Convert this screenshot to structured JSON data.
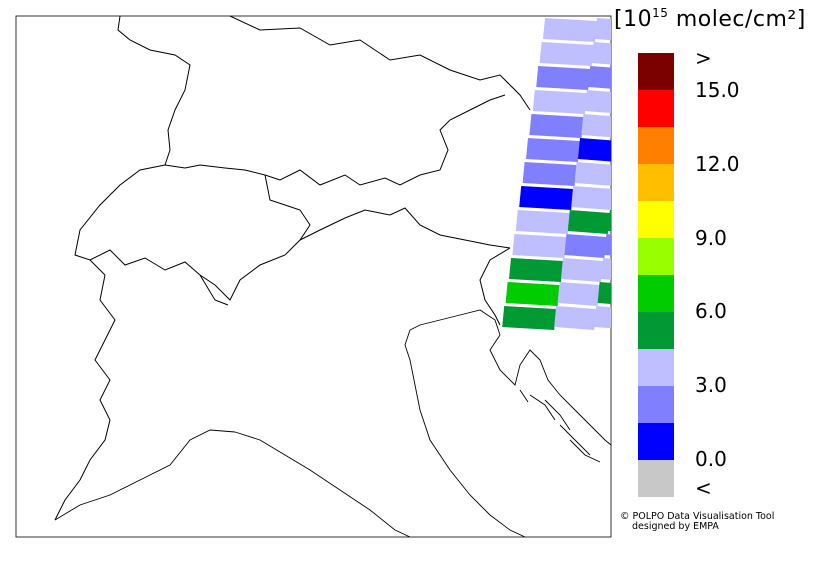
{
  "legend": {
    "unit_prefix": "[10",
    "unit_exp": "15",
    "unit_suffix": " molec/cm²]",
    "labels": [
      ">",
      "15.0",
      "12.0",
      "9.0",
      "6.0",
      "3.0",
      "0.0",
      "<"
    ],
    "colors": [
      "#7b0000",
      "#ff0000",
      "#ff7f00",
      "#ffbf00",
      "#ffff00",
      "#99ff00",
      "#00cc00",
      "#009933",
      "#bfbfff",
      "#8080ff",
      "#0000ff",
      "#c8c8c8"
    ]
  },
  "credit": {
    "line1": "© POLPO Data Visualisation Tool",
    "line2": "designed by EMPA"
  },
  "swath_pixels": [
    {
      "row": 0,
      "cols": [
        "#bfbfff",
        "#bfbfff",
        "#bfbfff"
      ]
    },
    {
      "row": 1,
      "cols": [
        "#bfbfff",
        "#bfbfff",
        "#bfbfff"
      ]
    },
    {
      "row": 2,
      "cols": [
        "#8080ff",
        "#8080ff",
        "#8080ff"
      ]
    },
    {
      "row": 3,
      "cols": [
        "#bfbfff",
        "#bfbfff",
        "#bfbfff"
      ]
    },
    {
      "row": 4,
      "cols": [
        "#8080ff",
        "#bfbfff",
        "#bfbfff"
      ]
    },
    {
      "row": 5,
      "cols": [
        "#8080ff",
        "#0000ff",
        "#0000ff"
      ]
    },
    {
      "row": 6,
      "cols": [
        "#8080ff",
        "#bfbfff",
        "#bfbfff"
      ]
    },
    {
      "row": 7,
      "cols": [
        "#0000ff",
        "#bfbfff",
        "#bfbfff"
      ]
    },
    {
      "row": 8,
      "cols": [
        "#bfbfff",
        "#009933",
        "#009933"
      ]
    },
    {
      "row": 9,
      "cols": [
        "#bfbfff",
        "#8080ff",
        "#8080ff"
      ]
    },
    {
      "row": 10,
      "cols": [
        "#009933",
        "#bfbfff",
        "#bfbfff"
      ]
    },
    {
      "row": 11,
      "cols": [
        "#00cc00",
        "#bfbfff",
        "#009933"
      ]
    },
    {
      "row": 12,
      "cols": [
        "#009933",
        "#bfbfff",
        "#bfbfff"
      ]
    }
  ]
}
